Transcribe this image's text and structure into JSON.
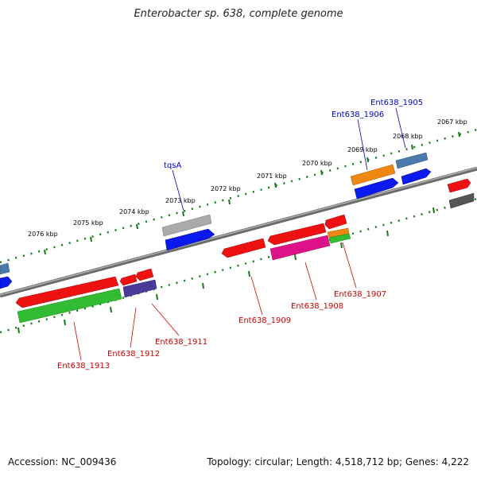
{
  "title": "Enterobacter sp. 638, complete genome",
  "footer": {
    "accession": "Accession: NC_009436",
    "summary": "Topology: circular; Length: 4,518,712 bp; Genes: 4,222"
  },
  "ticks": [
    "2067 kbp",
    "2068 kbp",
    "2069 kbp",
    "2070 kbp",
    "2071 kbp",
    "2072 kbp",
    "2073 kbp",
    "2074 kbp",
    "2075 kbp",
    "2076 kbp"
  ],
  "gene_labels": {
    "ent1905": "Ent638_1905",
    "ent1906": "Ent638_1906",
    "tqsA": "tqsA",
    "ent1907": "Ent638_1907",
    "ent1908": "Ent638_1908",
    "ent1909": "Ent638_1909",
    "ent1911": "Ent638_1911",
    "ent1912": "Ent638_1912",
    "ent1913": "Ent638_1913"
  },
  "colors": {
    "backbone": "#808080",
    "tick_ring": "#1a7a1a",
    "red": "#ee1111",
    "blue": "#0a1aee",
    "green": "#33bb33",
    "orange": "#ee8811",
    "pink": "#dd1188",
    "purple": "#4a3a9a",
    "steel": "#4a7aaa",
    "grey": "#aaaaaa",
    "dark_grey": "#555555",
    "red_label": "#cc0000",
    "blue_label": "#0000cc"
  }
}
